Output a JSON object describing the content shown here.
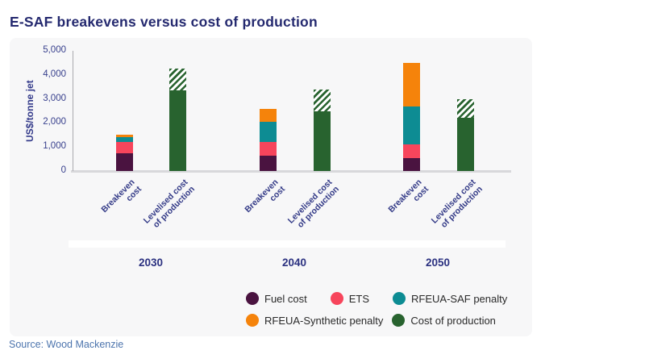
{
  "page": {
    "title": "E-SAF breakevens versus cost of production",
    "source": "Source: Wood Mackenzie"
  },
  "colors": {
    "title_text": "#24296f",
    "axis_text": "#38408d",
    "panel_background": "#f7f7f8",
    "legend_text": "#2a2a2a",
    "source_text": "#4c74ad",
    "fuel_cost": "#4a1340",
    "ets": "#f7455c",
    "rfeua_saf_penalty": "#0d8c93",
    "rfeua_synthetic_penalty": "#f5830b",
    "cost_of_production": "#28632f"
  },
  "chart_data": {
    "type": "bar",
    "stacked": true,
    "title": "E-SAF breakevens versus cost of production",
    "ylabel": "US$/tonne jet",
    "xlabel": "",
    "ylim": [
      0,
      5000
    ],
    "grid": false,
    "legend_position": "bottom-right",
    "yticks": [
      0,
      1000,
      2000,
      3000,
      4000,
      5000
    ],
    "ytick_labels": [
      "0",
      "1,000",
      "2,000",
      "3,000",
      "4,000",
      "5,000"
    ],
    "groups": [
      {
        "year": "2030",
        "bars": [
          {
            "label_lines": [
              "Breakeven",
              "cost"
            ],
            "total": 1500,
            "segments": [
              {
                "name": "Fuel cost",
                "value": 750,
                "color": "#4a1340"
              },
              {
                "name": "ETS",
                "value": 450,
                "color": "#f7455c"
              },
              {
                "name": "RFEUA-SAF penalty",
                "value": 200,
                "color": "#0d8c93"
              },
              {
                "name": "RFEUA-Synthetic penalty",
                "value": 100,
                "color": "#f5830b"
              }
            ]
          },
          {
            "label_lines": [
              "Levelised cost",
              "of production"
            ],
            "total": 4250,
            "segments": [
              {
                "name": "Cost of production",
                "value": 3350,
                "color": "#28632f"
              },
              {
                "name": "Cost of production (hatched upper range)",
                "value": 900,
                "color": "#28632f",
                "hatch": true
              }
            ]
          }
        ]
      },
      {
        "year": "2040",
        "bars": [
          {
            "label_lines": [
              "Breakeven",
              "cost"
            ],
            "total": 2600,
            "segments": [
              {
                "name": "Fuel cost",
                "value": 650,
                "color": "#4a1340"
              },
              {
                "name": "ETS",
                "value": 550,
                "color": "#f7455c"
              },
              {
                "name": "RFEUA-SAF penalty",
                "value": 850,
                "color": "#0d8c93"
              },
              {
                "name": "RFEUA-Synthetic penalty",
                "value": 550,
                "color": "#f5830b"
              }
            ]
          },
          {
            "label_lines": [
              "Levelised cost",
              "of production"
            ],
            "total": 3400,
            "segments": [
              {
                "name": "Cost of production",
                "value": 2500,
                "color": "#28632f"
              },
              {
                "name": "Cost of production (hatched upper range)",
                "value": 900,
                "color": "#28632f",
                "hatch": true
              }
            ]
          }
        ]
      },
      {
        "year": "2050",
        "bars": [
          {
            "label_lines": [
              "Breakeven",
              "cost"
            ],
            "total": 4500,
            "segments": [
              {
                "name": "Fuel cost",
                "value": 550,
                "color": "#4a1340"
              },
              {
                "name": "ETS",
                "value": 550,
                "color": "#f7455c"
              },
              {
                "name": "RFEUA-SAF penalty",
                "value": 1600,
                "color": "#0d8c93"
              },
              {
                "name": "RFEUA-Synthetic penalty",
                "value": 1800,
                "color": "#f5830b"
              }
            ]
          },
          {
            "label_lines": [
              "Levelised cost",
              "of production"
            ],
            "total": 3000,
            "segments": [
              {
                "name": "Cost of production",
                "value": 2200,
                "color": "#28632f"
              },
              {
                "name": "Cost of production (hatched upper range)",
                "value": 800,
                "color": "#28632f",
                "hatch": true
              }
            ]
          }
        ]
      }
    ],
    "legend": [
      {
        "label": "Fuel cost",
        "color": "#4a1340"
      },
      {
        "label": "ETS",
        "color": "#f7455c"
      },
      {
        "label": "RFEUA-SAF penalty",
        "color": "#0d8c93"
      },
      {
        "label": "RFEUA-Synthetic penalty",
        "color": "#f5830b"
      },
      {
        "label": "Cost of production",
        "color": "#28632f"
      }
    ],
    "legend_rows": [
      3,
      2
    ]
  }
}
